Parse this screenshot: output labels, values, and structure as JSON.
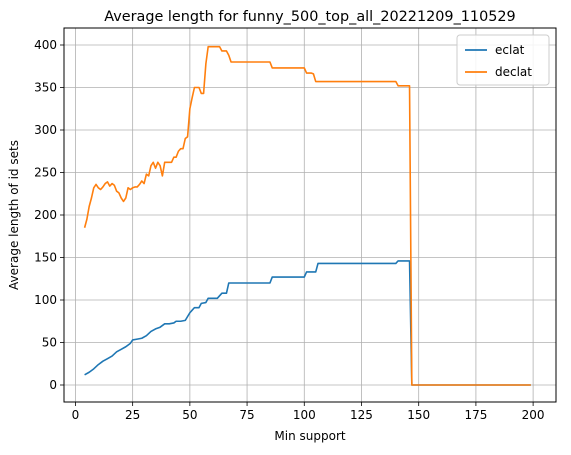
{
  "chart_data": {
    "type": "line",
    "title": "Average length for funny_500_top_all_20221209_110529",
    "xlabel": "Min support",
    "ylabel": "Average length of id sets",
    "xlim": [
      -5,
      210
    ],
    "ylim": [
      -20,
      420
    ],
    "xticks": [
      0,
      25,
      50,
      75,
      100,
      125,
      150,
      175,
      200
    ],
    "yticks": [
      0,
      50,
      100,
      150,
      200,
      250,
      300,
      350,
      400
    ],
    "grid": true,
    "legend_position": "top-right",
    "series": [
      {
        "name": "eclat",
        "color": "#1f77b4",
        "points": [
          [
            4,
            12
          ],
          [
            6,
            15
          ],
          [
            8,
            19
          ],
          [
            10,
            24
          ],
          [
            12,
            28
          ],
          [
            14,
            31
          ],
          [
            16,
            34
          ],
          [
            18,
            39
          ],
          [
            20,
            42
          ],
          [
            22,
            45
          ],
          [
            24,
            49
          ],
          [
            25,
            53
          ],
          [
            27,
            54
          ],
          [
            29,
            55
          ],
          [
            31,
            58
          ],
          [
            33,
            63
          ],
          [
            35,
            66
          ],
          [
            37,
            68
          ],
          [
            39,
            72
          ],
          [
            41,
            72
          ],
          [
            43,
            73
          ],
          [
            44,
            75
          ],
          [
            46,
            75
          ],
          [
            48,
            76
          ],
          [
            50,
            85
          ],
          [
            51,
            88
          ],
          [
            52,
            91
          ],
          [
            54,
            91
          ],
          [
            55,
            96
          ],
          [
            57,
            97
          ],
          [
            58,
            102
          ],
          [
            60,
            102
          ],
          [
            62,
            102
          ],
          [
            64,
            108
          ],
          [
            66,
            108
          ],
          [
            67,
            120
          ],
          [
            69,
            120
          ],
          [
            71,
            120
          ],
          [
            73,
            120
          ],
          [
            75,
            120
          ],
          [
            77,
            120
          ],
          [
            79,
            120
          ],
          [
            81,
            120
          ],
          [
            83,
            120
          ],
          [
            85,
            120
          ],
          [
            86,
            127
          ],
          [
            88,
            127
          ],
          [
            90,
            127
          ],
          [
            92,
            127
          ],
          [
            94,
            127
          ],
          [
            96,
            127
          ],
          [
            98,
            127
          ],
          [
            100,
            127
          ],
          [
            101,
            133
          ],
          [
            103,
            133
          ],
          [
            105,
            133
          ],
          [
            106,
            143
          ],
          [
            110,
            143
          ],
          [
            115,
            143
          ],
          [
            120,
            143
          ],
          [
            125,
            143
          ],
          [
            130,
            143
          ],
          [
            135,
            143
          ],
          [
            140,
            143
          ],
          [
            141,
            146
          ],
          [
            143,
            146
          ],
          [
            145,
            146
          ],
          [
            146,
            146
          ],
          [
            147,
            0
          ],
          [
            150,
            0
          ],
          [
            160,
            0
          ],
          [
            170,
            0
          ],
          [
            180,
            0
          ],
          [
            190,
            0
          ],
          [
            199,
            0
          ]
        ]
      },
      {
        "name": "declat",
        "color": "#ff7f0e",
        "points": [
          [
            4,
            185
          ],
          [
            5,
            195
          ],
          [
            6,
            210
          ],
          [
            7,
            220
          ],
          [
            8,
            232
          ],
          [
            9,
            236
          ],
          [
            10,
            232
          ],
          [
            11,
            230
          ],
          [
            12,
            233
          ],
          [
            13,
            237
          ],
          [
            14,
            239
          ],
          [
            15,
            234
          ],
          [
            16,
            237
          ],
          [
            17,
            235
          ],
          [
            18,
            228
          ],
          [
            19,
            226
          ],
          [
            20,
            220
          ],
          [
            21,
            216
          ],
          [
            22,
            220
          ],
          [
            23,
            232
          ],
          [
            24,
            230
          ],
          [
            25,
            232
          ],
          [
            26,
            233
          ],
          [
            27,
            233
          ],
          [
            28,
            236
          ],
          [
            29,
            240
          ],
          [
            30,
            237
          ],
          [
            31,
            248
          ],
          [
            32,
            246
          ],
          [
            33,
            258
          ],
          [
            34,
            262
          ],
          [
            35,
            255
          ],
          [
            36,
            262
          ],
          [
            37,
            258
          ],
          [
            38,
            246
          ],
          [
            39,
            262
          ],
          [
            40,
            262
          ],
          [
            41,
            262
          ],
          [
            42,
            262
          ],
          [
            43,
            268
          ],
          [
            44,
            268
          ],
          [
            45,
            275
          ],
          [
            46,
            278
          ],
          [
            47,
            278
          ],
          [
            48,
            290
          ],
          [
            49,
            292
          ],
          [
            50,
            325
          ],
          [
            51,
            338
          ],
          [
            52,
            350
          ],
          [
            53,
            350
          ],
          [
            54,
            350
          ],
          [
            55,
            343
          ],
          [
            56,
            343
          ],
          [
            57,
            378
          ],
          [
            58,
            398
          ],
          [
            60,
            398
          ],
          [
            62,
            398
          ],
          [
            63,
            398
          ],
          [
            64,
            393
          ],
          [
            66,
            393
          ],
          [
            67,
            388
          ],
          [
            68,
            380
          ],
          [
            70,
            380
          ],
          [
            75,
            380
          ],
          [
            80,
            380
          ],
          [
            85,
            380
          ],
          [
            86,
            373
          ],
          [
            90,
            373
          ],
          [
            95,
            373
          ],
          [
            100,
            373
          ],
          [
            101,
            367
          ],
          [
            103,
            367
          ],
          [
            104,
            366
          ],
          [
            105,
            357
          ],
          [
            110,
            357
          ],
          [
            115,
            357
          ],
          [
            120,
            357
          ],
          [
            125,
            357
          ],
          [
            130,
            357
          ],
          [
            135,
            357
          ],
          [
            140,
            357
          ],
          [
            141,
            352
          ],
          [
            143,
            352
          ],
          [
            145,
            352
          ],
          [
            146,
            352
          ],
          [
            147,
            0
          ],
          [
            150,
            0
          ],
          [
            160,
            0
          ],
          [
            170,
            0
          ],
          [
            180,
            0
          ],
          [
            190,
            0
          ],
          [
            199,
            0
          ]
        ]
      }
    ]
  }
}
